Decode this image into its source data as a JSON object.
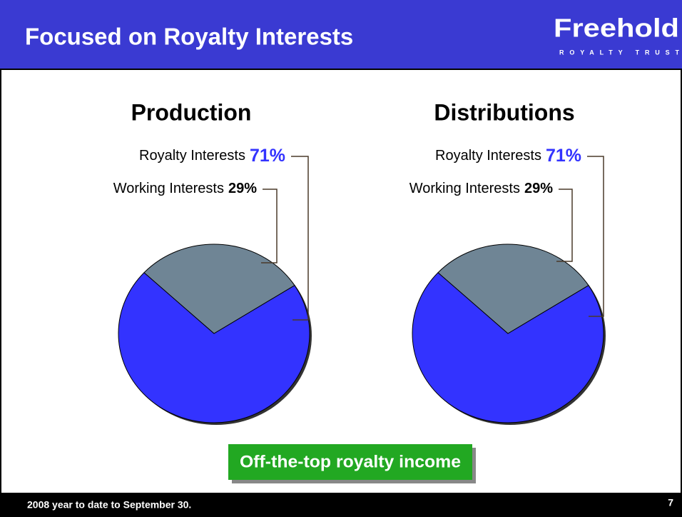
{
  "header": {
    "title": "Focused on Royalty Interests",
    "logo": "Freehold",
    "logo_sub": "ROYALTY TRUST"
  },
  "chart_data": [
    {
      "type": "pie",
      "title": "Production",
      "categories": [
        "Royalty Interests",
        "Working Interests"
      ],
      "values": [
        71,
        29
      ],
      "value_labels": [
        "71%",
        "29%"
      ],
      "colors": [
        "#3333ff",
        "#6f8595"
      ]
    },
    {
      "type": "pie",
      "title": "Distributions",
      "categories": [
        "Royalty Interests",
        "Working Interests"
      ],
      "values": [
        71,
        29
      ],
      "value_labels": [
        "71%",
        "29%"
      ],
      "colors": [
        "#3333ff",
        "#6f8595"
      ]
    }
  ],
  "callout": "Off-the-top royalty income",
  "footer": {
    "note": "2008 year to date to September 30.",
    "page": "7"
  }
}
